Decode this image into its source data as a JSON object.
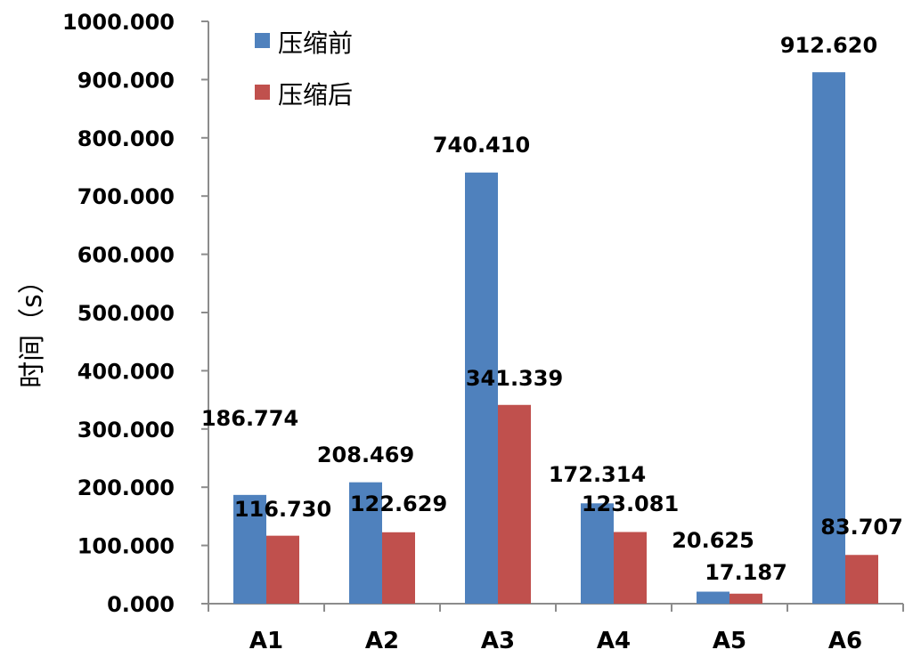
{
  "chart_data": {
    "type": "bar",
    "categories": [
      "A1",
      "A2",
      "A3",
      "A4",
      "A5",
      "A6"
    ],
    "series": [
      {
        "name": "压缩前",
        "values": [
          186.774,
          208.469,
          740.41,
          172.314,
          20.625,
          912.62
        ],
        "color": "#4F81BD"
      },
      {
        "name": "压缩后",
        "values": [
          116.73,
          122.629,
          341.339,
          123.081,
          17.187,
          83.707
        ],
        "color": "#C0504D"
      }
    ],
    "ylabel": "时间（s）",
    "xlabel": "",
    "ylim": [
      0,
      1000
    ],
    "ytick_step": 100,
    "ytick_labels": [
      "0.000",
      "100.000",
      "200.000",
      "300.000",
      "400.000",
      "500.000",
      "600.000",
      "700.000",
      "800.000",
      "900.000",
      "1000.000"
    ],
    "data_labels": [
      [
        "186.774",
        "208.469",
        "740.410",
        "172.314",
        "20.625",
        "912.620"
      ],
      [
        "116.730",
        "122.629",
        "341.339",
        "123.081",
        "17.187",
        "83.707"
      ]
    ],
    "legend_position": "top-left",
    "grid": false
  }
}
